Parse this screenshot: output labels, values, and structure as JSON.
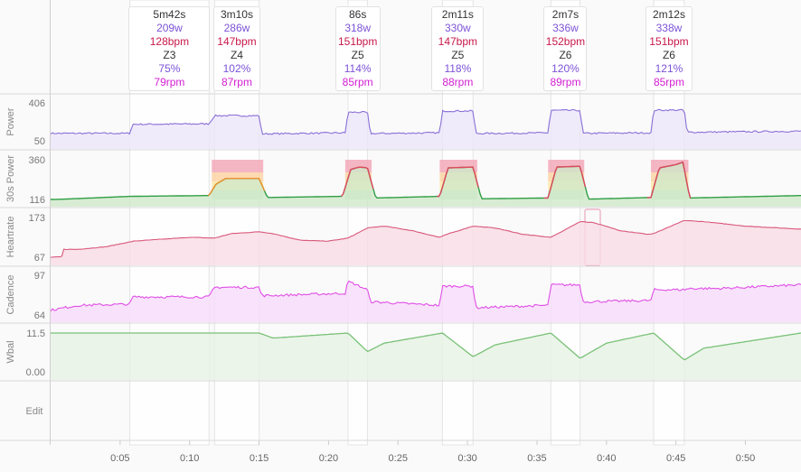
{
  "panels": [
    {
      "label": "Power",
      "ymax": "406",
      "ymin": "50"
    },
    {
      "label": "30s Power",
      "ymax": "360",
      "ymin": "116"
    },
    {
      "label": "Heartrate",
      "ymax": "173",
      "ymin": "67"
    },
    {
      "label": "Cadence",
      "ymax": "97",
      "ymin": "64"
    },
    {
      "label": "Wbal",
      "ymax": "11.5",
      "ymin": "0.00"
    },
    {
      "label": "Edit"
    }
  ],
  "intervals": [
    {
      "duration": "5m42s",
      "power": "209w",
      "hr": "128bpm",
      "zone": "Z3",
      "pct": "75%",
      "cadence": "79rpm"
    },
    {
      "duration": "3m10s",
      "power": "286w",
      "hr": "147bpm",
      "zone": "Z4",
      "pct": "102%",
      "cadence": "87rpm"
    },
    {
      "duration": "86s",
      "power": "318w",
      "hr": "151bpm",
      "zone": "Z5",
      "pct": "114%",
      "cadence": "85rpm"
    },
    {
      "duration": "2m11s",
      "power": "330w",
      "hr": "147bpm",
      "zone": "Z5",
      "pct": "118%",
      "cadence": "88rpm"
    },
    {
      "duration": "2m7s",
      "power": "336w",
      "hr": "152bpm",
      "zone": "Z6",
      "pct": "120%",
      "cadence": "89rpm"
    },
    {
      "duration": "2m12s",
      "power": "338w",
      "hr": "151bpm",
      "zone": "Z6",
      "pct": "121%",
      "cadence": "85rpm"
    }
  ],
  "colors": {
    "power": "#8a6fd6",
    "hr": "#d9587c",
    "cadence": "#e04fe6",
    "wbal": "#79c177",
    "z2": "#53b04b",
    "z4": "#f0922e",
    "z5": "#e2475f"
  },
  "chart_data": {
    "type": "line",
    "x_unit": "minutes",
    "xlim": [
      0,
      54
    ],
    "x_ticks": [
      "0:05",
      "0:10",
      "0:15",
      "0:20",
      "0:25",
      "0:30",
      "0:35",
      "0:40",
      "0:45",
      "0:50"
    ],
    "interval_ranges": [
      [
        5.7,
        11.4
      ],
      [
        11.8,
        15.0
      ],
      [
        21.4,
        22.8
      ],
      [
        28.2,
        30.4
      ],
      [
        36.0,
        38.1
      ],
      [
        43.4,
        45.6
      ]
    ],
    "series": [
      {
        "name": "Power",
        "ylim": [
          50,
          406
        ],
        "points": [
          [
            0,
            120
          ],
          [
            5.7,
            120
          ],
          [
            5.9,
            205
          ],
          [
            11.4,
            209
          ],
          [
            11.8,
            286
          ],
          [
            15.0,
            286
          ],
          [
            15.2,
            115
          ],
          [
            21.2,
            125
          ],
          [
            21.4,
            318
          ],
          [
            22.8,
            318
          ],
          [
            23.0,
            118
          ],
          [
            28.0,
            125
          ],
          [
            28.2,
            330
          ],
          [
            30.4,
            330
          ],
          [
            30.6,
            118
          ],
          [
            35.8,
            125
          ],
          [
            36.0,
            336
          ],
          [
            38.1,
            336
          ],
          [
            38.3,
            120
          ],
          [
            43.2,
            125
          ],
          [
            43.4,
            338
          ],
          [
            45.6,
            338
          ],
          [
            45.8,
            130
          ],
          [
            54,
            140
          ]
        ]
      },
      {
        "name": "30s Power",
        "ylim": [
          116,
          360
        ],
        "points": [
          [
            0,
            116
          ],
          [
            1,
            118
          ],
          [
            5.7,
            135
          ],
          [
            11.4,
            140
          ],
          [
            11.9,
            210
          ],
          [
            12.6,
            245
          ],
          [
            15.0,
            245
          ],
          [
            15.6,
            128
          ],
          [
            21.0,
            135
          ],
          [
            21.6,
            300
          ],
          [
            22.2,
            315
          ],
          [
            22.8,
            310
          ],
          [
            23.4,
            125
          ],
          [
            28.0,
            135
          ],
          [
            28.6,
            310
          ],
          [
            30.4,
            315
          ],
          [
            31.0,
            120
          ],
          [
            35.8,
            125
          ],
          [
            36.4,
            315
          ],
          [
            38.1,
            320
          ],
          [
            38.7,
            118
          ],
          [
            43.2,
            128
          ],
          [
            43.8,
            310
          ],
          [
            45.0,
            330
          ],
          [
            45.5,
            345
          ],
          [
            46.0,
            125
          ],
          [
            54,
            140
          ]
        ]
      },
      {
        "name": "Heartrate",
        "ylim": [
          67,
          173
        ],
        "points": [
          [
            0,
            67
          ],
          [
            0.8,
            68
          ],
          [
            0.9,
            88
          ],
          [
            2,
            88
          ],
          [
            4,
            95
          ],
          [
            6,
            110
          ],
          [
            8,
            115
          ],
          [
            10,
            120
          ],
          [
            11.8,
            118
          ],
          [
            13,
            130
          ],
          [
            15,
            135
          ],
          [
            16,
            130
          ],
          [
            18,
            112
          ],
          [
            20,
            110
          ],
          [
            21.4,
            118
          ],
          [
            22.8,
            145
          ],
          [
            24,
            150
          ],
          [
            26,
            138
          ],
          [
            28,
            120
          ],
          [
            28.5,
            128
          ],
          [
            30.4,
            150
          ],
          [
            32,
            145
          ],
          [
            34,
            128
          ],
          [
            36,
            120
          ],
          [
            37,
            140
          ],
          [
            38.1,
            162
          ],
          [
            39,
            160
          ],
          [
            41,
            138
          ],
          [
            43,
            128
          ],
          [
            43.4,
            130
          ],
          [
            45.6,
            165
          ],
          [
            47,
            162
          ],
          [
            50,
            150
          ],
          [
            54,
            142
          ]
        ]
      },
      {
        "name": "Cadence",
        "ylim": [
          64,
          97
        ],
        "points": [
          [
            0,
            68
          ],
          [
            2,
            72
          ],
          [
            5.7,
            73
          ],
          [
            5.9,
            79
          ],
          [
            11.4,
            79
          ],
          [
            11.8,
            87
          ],
          [
            15.0,
            87
          ],
          [
            15.2,
            80
          ],
          [
            21.2,
            82
          ],
          [
            21.4,
            92
          ],
          [
            22.8,
            85
          ],
          [
            23.0,
            75
          ],
          [
            28.0,
            72
          ],
          [
            28.2,
            88
          ],
          [
            30.4,
            88
          ],
          [
            30.6,
            70
          ],
          [
            35.8,
            72
          ],
          [
            36.0,
            89
          ],
          [
            38.1,
            89
          ],
          [
            38.3,
            75
          ],
          [
            43.2,
            76
          ],
          [
            43.4,
            85
          ],
          [
            45.6,
            85
          ],
          [
            46,
            86
          ],
          [
            48,
            86
          ],
          [
            54,
            89
          ]
        ]
      },
      {
        "name": "Wbal",
        "ylim": [
          0,
          11.5
        ],
        "points": [
          [
            0,
            11.5
          ],
          [
            15.0,
            11.5
          ],
          [
            16,
            10
          ],
          [
            21.4,
            11.5
          ],
          [
            22.8,
            6
          ],
          [
            24,
            8.5
          ],
          [
            28.2,
            11.5
          ],
          [
            30.4,
            4.5
          ],
          [
            32,
            8
          ],
          [
            36.0,
            11.5
          ],
          [
            38.1,
            4
          ],
          [
            40,
            8.5
          ],
          [
            43.4,
            11.5
          ],
          [
            45.6,
            3.5
          ],
          [
            47,
            7
          ],
          [
            54,
            11.5
          ]
        ]
      }
    ]
  }
}
